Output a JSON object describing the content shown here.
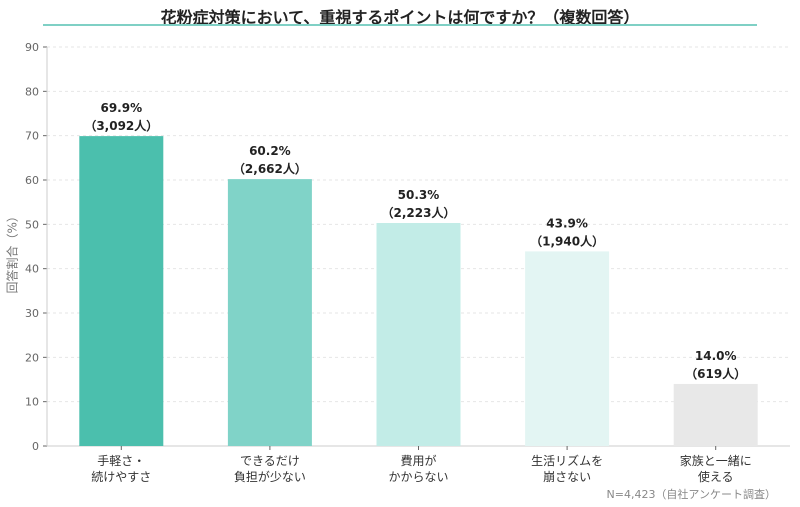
{
  "chart_data": {
    "type": "bar",
    "title": "花粉症対策において、重視するポイントは何ですか？（複数回答）",
    "ylabel": "回答割合（%）",
    "xlabel": "",
    "ylim": [
      0,
      90
    ],
    "yticks": [
      0,
      10,
      20,
      30,
      40,
      50,
      60,
      70,
      80,
      90
    ],
    "grid": true,
    "categories": [
      [
        "手軽さ・",
        "続けやすさ"
      ],
      [
        "できるだけ",
        "負担が少ない"
      ],
      [
        "費用が",
        "かからない"
      ],
      [
        "生活リズムを",
        "崩さない"
      ],
      [
        "家族と一緒に",
        "使える"
      ]
    ],
    "values": [
      69.9,
      60.2,
      50.3,
      43.9,
      14.0
    ],
    "data_labels": [
      [
        "69.9%",
        "（3,092人）"
      ],
      [
        "60.2%",
        "（2,662人）"
      ],
      [
        "50.3%",
        "（2,223人）"
      ],
      [
        "43.9%",
        "（1,940人）"
      ],
      [
        "14.0%",
        "（619人）"
      ]
    ],
    "colors": [
      "#4bbfad",
      "#80d3c8",
      "#c2ece7",
      "#e3f5f3",
      "#e8e8e8"
    ],
    "note": "N=4,423（自社アンケート調査）"
  }
}
